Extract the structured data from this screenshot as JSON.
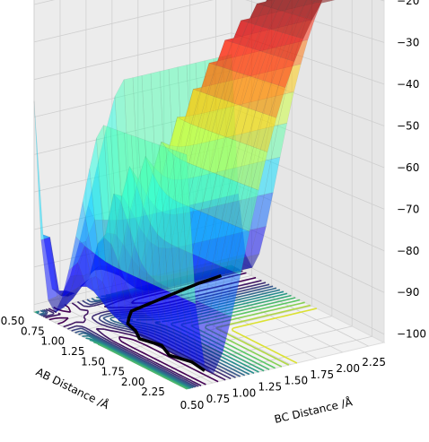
{
  "chart_data": {
    "type": "surface3d",
    "title": "",
    "xlabel": "AB Distance /Å",
    "ylabel": "BC Distance /Å",
    "zlabel": "",
    "xlim": [
      0.5,
      2.4
    ],
    "ylim": [
      0.5,
      2.4
    ],
    "zlim": [
      -102,
      -17
    ],
    "x_ticks": [
      "0.50",
      "0.75",
      "1.00",
      "1.25",
      "1.50",
      "1.75",
      "2.00",
      "2.25"
    ],
    "y_ticks": [
      "0.50",
      "0.75",
      "1.00",
      "1.25",
      "1.50",
      "1.75",
      "2.00",
      "2.25"
    ],
    "z_ticks": [
      "−20",
      "−30",
      "−40",
      "−50",
      "−60",
      "−70",
      "−80",
      "−90",
      "−100"
    ],
    "grid": true,
    "colormap": "jet",
    "colormap_alpha": 0.5,
    "contour_colormap": "viridis",
    "trajectory_color": "#000000",
    "surface_function": "LEPS-like potential energy surface with minimum near AB 0.75 Å (exit valley) and near BC 0.75 Å (entrance valley), plateau about −20 at large AB and BC",
    "trajectory": {
      "ab": [
        2.3,
        2.1,
        1.9,
        1.7,
        1.5,
        1.35,
        1.2,
        1.1,
        1.0,
        0.95,
        0.9,
        0.85,
        0.8,
        0.76
      ],
      "bc": [
        0.75,
        0.78,
        0.72,
        0.8,
        0.74,
        0.82,
        0.86,
        0.95,
        1.05,
        1.25,
        1.45,
        1.65,
        1.85,
        2.1
      ]
    }
  }
}
